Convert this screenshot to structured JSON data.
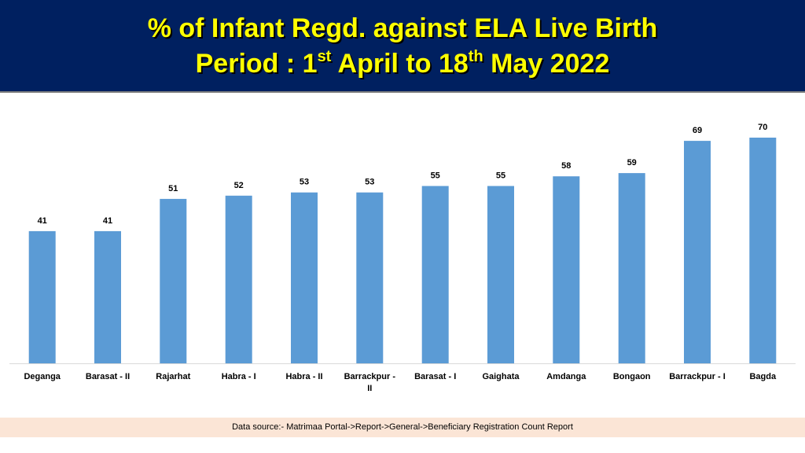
{
  "header": {
    "title_line1": "% of Infant Regd. against ELA Live Birth",
    "line2_prefix": "Period : 1",
    "line2_sup1": "st",
    "line2_mid": " April  to 18",
    "line2_sup2": "th",
    "line2_suffix": " May 2022"
  },
  "chart_data": {
    "type": "bar",
    "title": "% of Infant Regd. against ELA Live Birth Period : 1st April to 18th May 2022",
    "categories": [
      "Deganga",
      "Barasat - II",
      "Rajarhat",
      "Habra - I",
      "Habra - II",
      "Barrackpur - II",
      "Barasat - I",
      "Gaighata",
      "Amdanga",
      "Bongaon",
      "Barrackpur - I",
      "Bagda"
    ],
    "category_lines": [
      [
        "Deganga"
      ],
      [
        "Barasat - II"
      ],
      [
        "Rajarhat"
      ],
      [
        "Habra - I"
      ],
      [
        "Habra - II"
      ],
      [
        "Barrackpur -",
        "II"
      ],
      [
        "Barasat - I"
      ],
      [
        "Gaighata"
      ],
      [
        "Amdanga"
      ],
      [
        "Bongaon"
      ],
      [
        "Barrackpur - I"
      ],
      [
        "Bagda"
      ]
    ],
    "values": [
      41,
      41,
      51,
      52,
      53,
      53,
      55,
      55,
      58,
      59,
      69,
      70
    ],
    "xlabel": "",
    "ylabel": "",
    "ylim": [
      0,
      75
    ],
    "grid": false,
    "data_labels": true,
    "bar_color": "#5B9BD5"
  },
  "footer": {
    "source_text": "Data source:- Matrimaa Portal->Report->General->Beneficiary Registration Count Report"
  },
  "colors": {
    "header_bg": "#002060",
    "title_color": "#FFFF00",
    "footer_bg": "#FBE5D6"
  }
}
